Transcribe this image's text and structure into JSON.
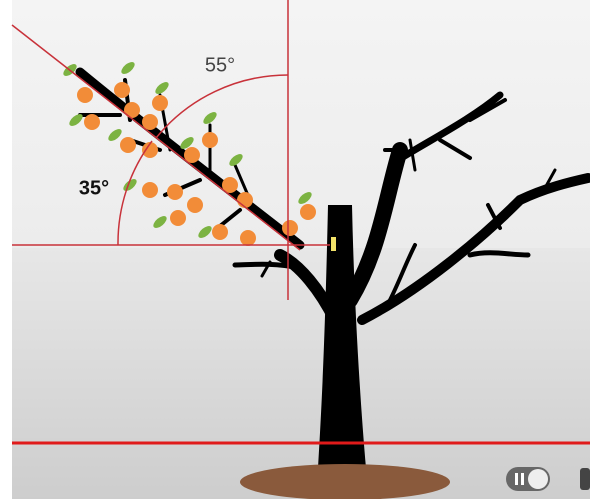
{
  "angle_labels": {
    "upper": "55°",
    "lower": "35°"
  }
}
